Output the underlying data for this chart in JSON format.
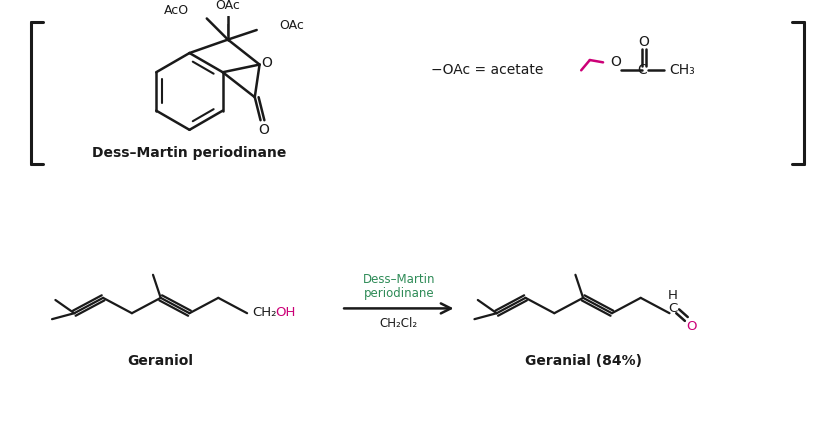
{
  "bg_color": "#ffffff",
  "text_color": "#1a1a1a",
  "green_color": "#2e8b57",
  "magenta_color": "#cc0077",
  "bond_color": "#1a1a1a",
  "fig_width": 8.35,
  "fig_height": 4.25,
  "dpi": 100,
  "label_dmp": "Dess–Martin periodinane",
  "label_geraniol": "Geraniol",
  "label_geranial": "Geranial (84%)",
  "label_oac_eq": "−OAc = acetate",
  "reagent_line1": "Dess–Martin",
  "reagent_line2": "periodinane",
  "reagent_solvent": "CH₂Cl₂"
}
